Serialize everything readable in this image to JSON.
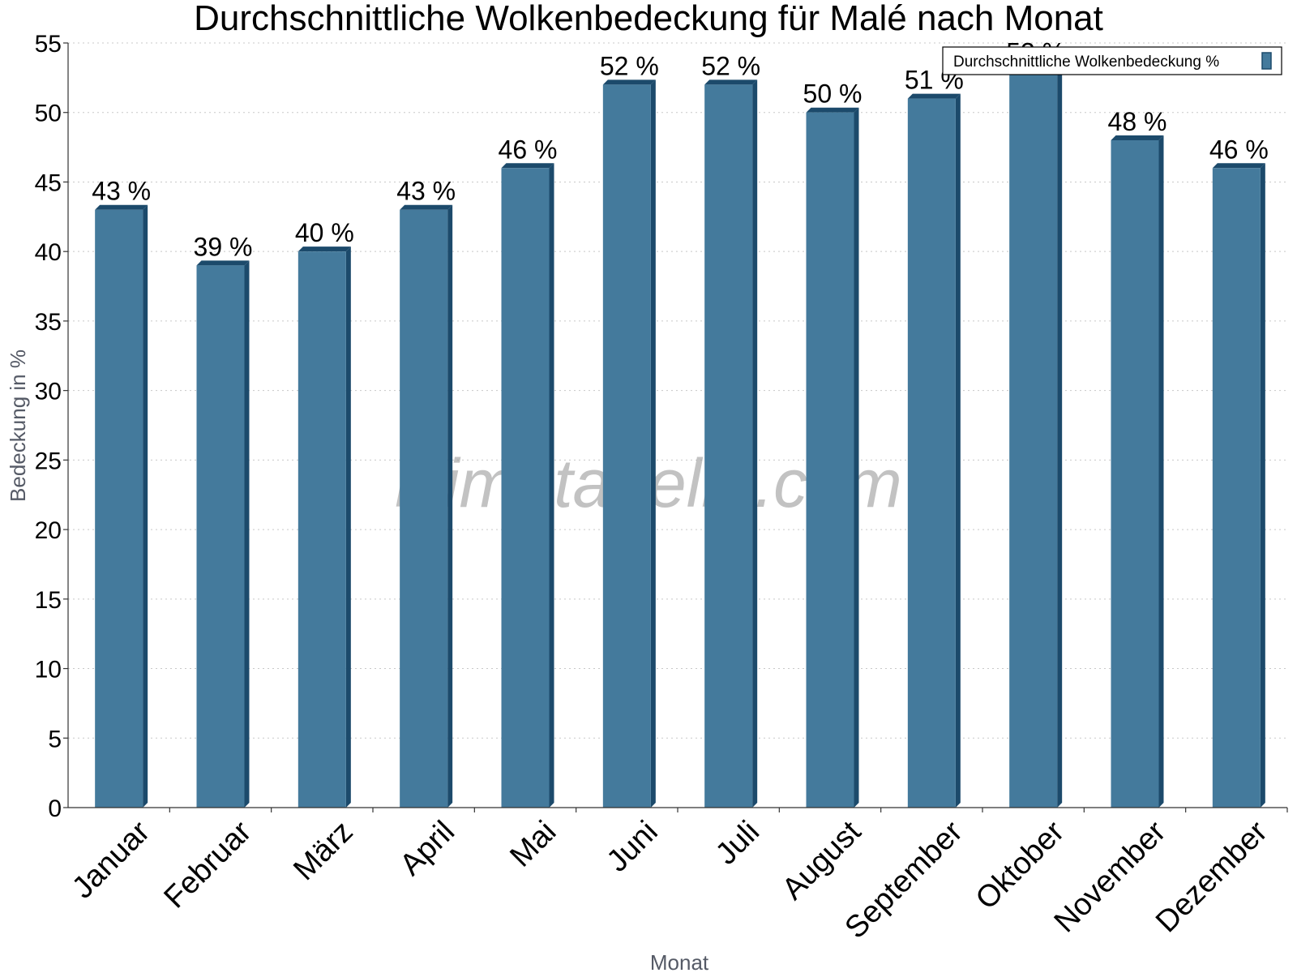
{
  "chart_data": {
    "type": "bar",
    "title": "Durchschnittliche Wolkenbedeckung für Malé nach Monat",
    "xlabel": "Monat",
    "ylabel": "Bedeckung in %",
    "categories": [
      "Januar",
      "Februar",
      "März",
      "April",
      "Mai",
      "Juni",
      "Juli",
      "August",
      "September",
      "Oktober",
      "November",
      "Dezember"
    ],
    "series": [
      {
        "name": "Durchschnittliche Wolkenbedeckung %",
        "values": [
          43,
          39,
          40,
          43,
          46,
          52,
          52,
          50,
          51,
          53,
          48,
          46
        ],
        "labels": [
          "43 %",
          "39 %",
          "40 %",
          "43 %",
          "46 %",
          "52 %",
          "52 %",
          "50 %",
          "51 %",
          "53 %",
          "48 %",
          "46 %"
        ]
      }
    ],
    "ylim": [
      0,
      55
    ],
    "yticks": [
      0,
      5,
      10,
      15,
      20,
      25,
      30,
      35,
      40,
      45,
      50,
      55
    ],
    "grid": "horizontal dotted",
    "legend_position": "top-right",
    "watermark": "klimatabelle.com",
    "colors": {
      "bar": "#447a9c",
      "bar_side": "#1c4a6b",
      "grid": "#c8c8c8",
      "axis": "#333333"
    }
  }
}
